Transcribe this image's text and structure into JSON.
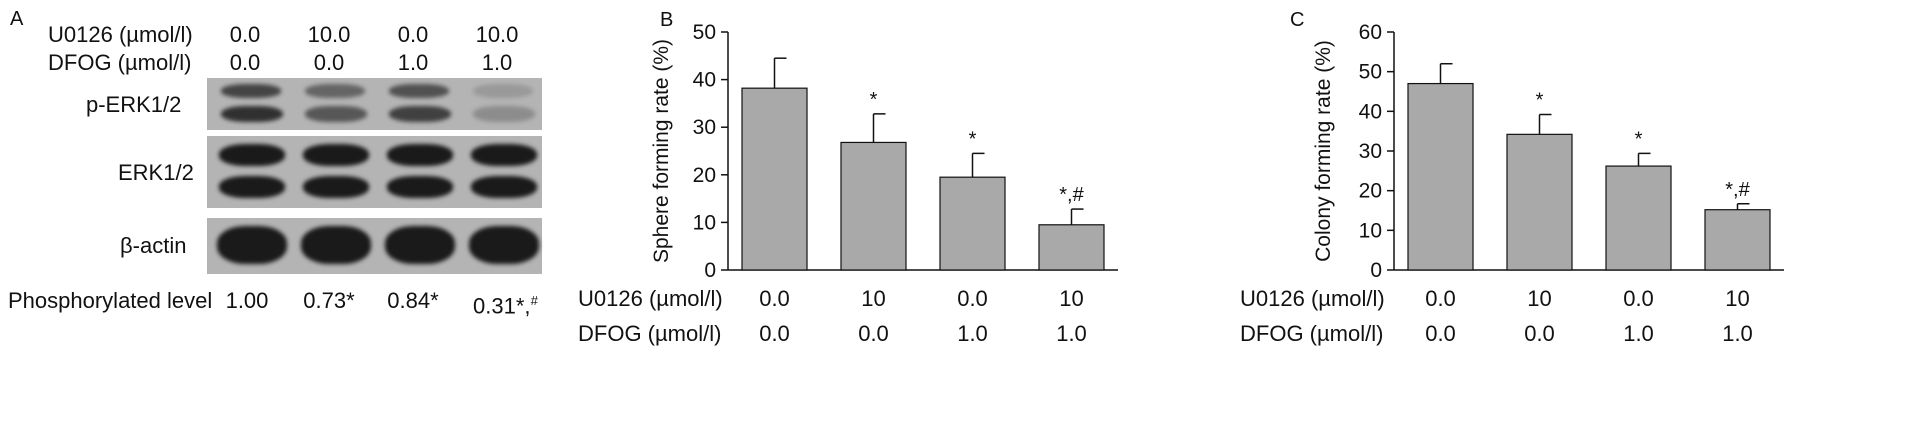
{
  "panel_a": {
    "letter": "A",
    "u0126_label": "U0126 (µmol/l)",
    "dfog_label": "DFOG (µmol/l)",
    "u0126_values": [
      "0.0",
      "10.0",
      "0.0",
      "10.0"
    ],
    "dfog_values": [
      "0.0",
      "0.0",
      "1.0",
      "1.0"
    ],
    "blot_labels": [
      "p-ERK1/2",
      "ERK1/2",
      "β-actin"
    ],
    "phos_label": "Phosphorylated level",
    "phos_values": [
      "1.00",
      "0.73*",
      "0.84*",
      "0.31*,"
    ],
    "phos_last_superscript": "#",
    "band_intensity": {
      "p_erk": [
        0.85,
        0.6,
        0.75,
        0.2
      ],
      "erk": [
        1,
        1,
        1,
        1
      ],
      "actin": [
        1,
        1,
        1,
        1
      ]
    }
  },
  "chart_data": [
    {
      "type": "bar",
      "letter": "B",
      "ylabel": "Sphere forming rate (%)",
      "ylim": [
        0,
        50
      ],
      "yticks": [
        0,
        10,
        20,
        30,
        40,
        50
      ],
      "values": [
        38.2,
        26.8,
        19.5,
        9.5
      ],
      "errors": [
        6.3,
        6.0,
        5.0,
        3.3
      ],
      "annotations": [
        "",
        "*",
        "*",
        "*,#"
      ],
      "bar_color": "#a9a9a9",
      "row_labels": [
        "U0126 (µmol/l)",
        "DFOG (µmol/l)"
      ],
      "u0126": [
        "0.0",
        "10",
        "0.0",
        "10"
      ],
      "dfog": [
        "0.0",
        "0.0",
        "1.0",
        "1.0"
      ]
    },
    {
      "type": "bar",
      "letter": "C",
      "ylabel": "Colony forming rate (%)",
      "ylim": [
        0,
        60
      ],
      "yticks": [
        0,
        10,
        20,
        30,
        40,
        50,
        60
      ],
      "values": [
        47.0,
        34.2,
        26.2,
        15.2
      ],
      "errors": [
        5.0,
        5.0,
        3.2,
        1.5
      ],
      "annotations": [
        "",
        "*",
        "*",
        "*,#"
      ],
      "bar_color": "#a9a9a9",
      "row_labels": [
        "U0126 (µmol/l)",
        "DFOG (µmol/l)"
      ],
      "u0126": [
        "0.0",
        "10",
        "0.0",
        "10"
      ],
      "dfog": [
        "0.0",
        "0.0",
        "1.0",
        "1.0"
      ]
    }
  ]
}
